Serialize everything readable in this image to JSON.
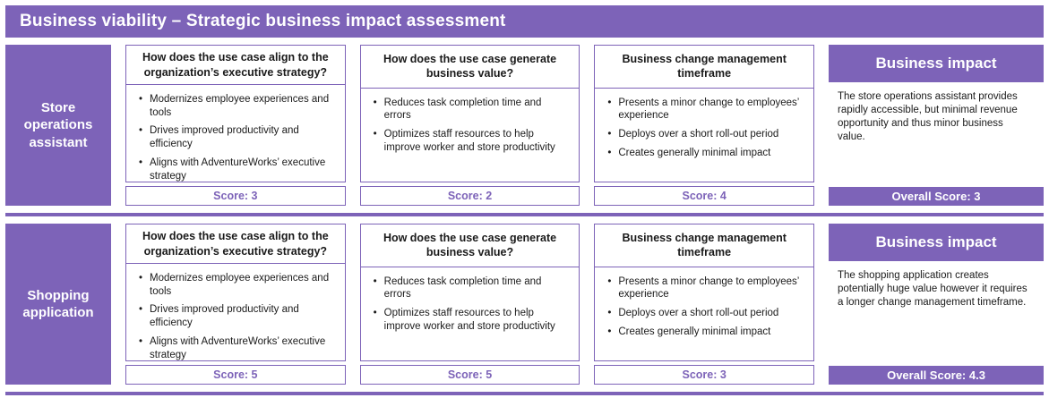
{
  "header": {
    "title": "Business viability – Strategic business impact assessment"
  },
  "colors": {
    "accent_purple": "#7d63b8",
    "text_black": "#1a1a1a",
    "background": "#ffffff"
  },
  "rows": [
    {
      "label": "Store operations assistant",
      "cards": [
        {
          "title": "How does the use case align to the organization’s executive strategy?",
          "bullets": [
            "Modernizes employee experiences and tools",
            "Drives improved productivity and efficiency",
            "Aligns with AdventureWorks’ executive strategy"
          ],
          "score": "Score: 3"
        },
        {
          "title": "How does the use case generate business value?",
          "bullets": [
            "Reduces task completion time and errors",
            "Optimizes staff resources to help improve worker and store productivity"
          ],
          "score": "Score: 2"
        },
        {
          "title": "Business change management timeframe",
          "bullets": [
            "Presents a minor change to employees’ experience",
            "Deploys over a short roll-out period",
            "Creates generally minimal impact"
          ],
          "score": "Score: 4"
        }
      ],
      "impact": {
        "title": "Business impact",
        "text": "The store operations assistant provides rapidly accessible, but minimal revenue opportunity and thus minor business value.",
        "overall": "Overall Score: 3"
      }
    },
    {
      "label": "Shopping application",
      "cards": [
        {
          "title": "How does the use case align to the organization’s executive strategy?",
          "bullets": [
            "Modernizes employee experiences and tools",
            "Drives improved productivity and efficiency",
            "Aligns with AdventureWorks’ executive strategy"
          ],
          "score": "Score: 5"
        },
        {
          "title": "How does the use case generate business value?",
          "bullets": [
            "Reduces task completion time and errors",
            "Optimizes staff resources to help improve worker and store productivity"
          ],
          "score": "Score: 5"
        },
        {
          "title": "Business change management timeframe",
          "bullets": [
            "Presents a minor change to employees’ experience",
            "Deploys over a short roll-out period",
            "Creates generally minimal impact"
          ],
          "score": "Score: 3"
        }
      ],
      "impact": {
        "title": "Business impact",
        "text": "The shopping application creates potentially huge value however it requires a longer change management timeframe.",
        "overall": "Overall Score: 4.3"
      }
    }
  ]
}
